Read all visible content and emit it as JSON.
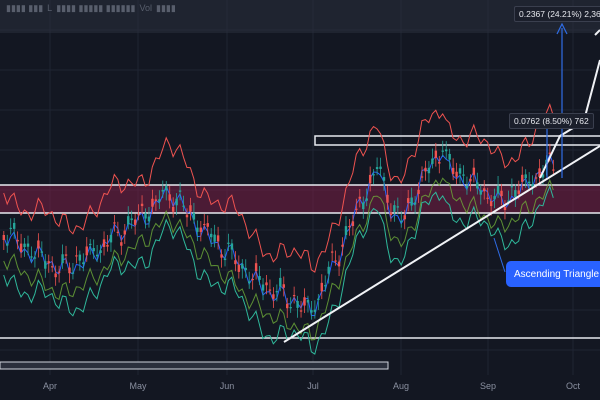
{
  "symbol_header": {
    "l_label": "L",
    "vol_label": "Vol"
  },
  "price_labels": {
    "top_target": "0.2367 (24.21%) 2,36",
    "mid_target": "0.0762 (8.50%) 762"
  },
  "callout": {
    "text": "Ascending Triangle P"
  },
  "time_axis": {
    "months": [
      "Apr",
      "May",
      "Jun",
      "Jul",
      "Aug",
      "Sep",
      "Oct"
    ]
  },
  "colors": {
    "background": "#131722",
    "bull": "#26a69a",
    "bear": "#ef5350",
    "upper_band": "#ef5350",
    "lower_band": "#2fb89b",
    "mid_band": "#2962ff",
    "zone": "#7a1f45",
    "arrow": "#2f6ce5",
    "callout_bg": "#2962ff"
  },
  "chart_data": {
    "type": "candlestick",
    "pattern": "Ascending Triangle",
    "x_axis": [
      "Apr",
      "May",
      "Jun",
      "Jul",
      "Aug",
      "Sep",
      "Oct"
    ],
    "measured_moves": [
      {
        "label": "0.2367 (24.21%) 2,36",
        "change": 0.2367,
        "percent": 24.21
      },
      {
        "label": "0.0762 (8.50%) 762",
        "change": 0.0762,
        "percent": 8.5
      }
    ],
    "indicators": [
      "Bollinger Bands",
      "Keltner Channel"
    ],
    "grid": true
  }
}
